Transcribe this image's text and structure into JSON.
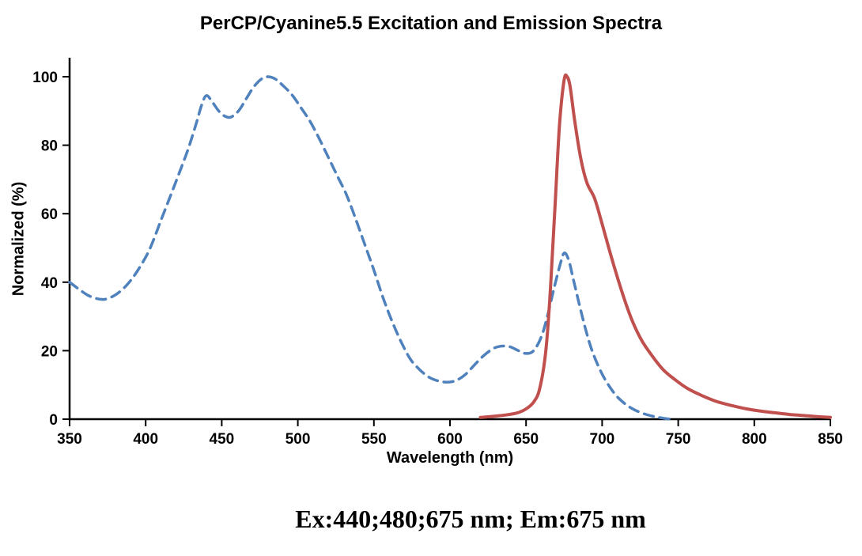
{
  "caption": "Ex:440;480;675 nm; Em:675 nm",
  "chart_data": {
    "type": "line",
    "title": "PerCP/Cyanine5.5 Excitation and Emission Spectra",
    "xlabel": "Wavelength (nm)",
    "ylabel": "Normalized (%)",
    "xlim": [
      350,
      850
    ],
    "ylim": [
      0,
      100
    ],
    "xticks": [
      350,
      400,
      450,
      500,
      550,
      600,
      650,
      700,
      750,
      800,
      850
    ],
    "yticks": [
      0,
      20,
      40,
      60,
      80,
      100
    ],
    "grid": false,
    "legend": "none",
    "series": [
      {
        "name": "Excitation",
        "style": "dashed",
        "color": "#4f81bd",
        "points": [
          [
            350,
            40
          ],
          [
            356,
            38
          ],
          [
            362,
            36.2
          ],
          [
            368,
            35.2
          ],
          [
            373,
            35
          ],
          [
            379,
            36
          ],
          [
            385,
            38
          ],
          [
            391,
            41
          ],
          [
            397,
            45
          ],
          [
            403,
            50
          ],
          [
            410,
            58
          ],
          [
            417,
            66
          ],
          [
            423,
            73
          ],
          [
            428,
            79
          ],
          [
            433,
            86
          ],
          [
            437,
            92
          ],
          [
            440,
            94.5
          ],
          [
            444,
            92.5
          ],
          [
            448,
            90
          ],
          [
            452,
            88.5
          ],
          [
            456,
            88.2
          ],
          [
            461,
            90
          ],
          [
            466,
            93.5
          ],
          [
            471,
            97
          ],
          [
            476,
            99.3
          ],
          [
            480,
            100
          ],
          [
            485,
            99.4
          ],
          [
            490,
            97.5
          ],
          [
            496,
            94.8
          ],
          [
            502,
            91
          ],
          [
            508,
            87
          ],
          [
            514,
            82
          ],
          [
            520,
            76.5
          ],
          [
            526,
            71
          ],
          [
            532,
            65.5
          ],
          [
            538,
            58.5
          ],
          [
            544,
            51
          ],
          [
            550,
            43.5
          ],
          [
            556,
            35.5
          ],
          [
            562,
            28.5
          ],
          [
            568,
            22.5
          ],
          [
            574,
            17.5
          ],
          [
            580,
            14.5
          ],
          [
            586,
            12.3
          ],
          [
            592,
            11.2
          ],
          [
            598,
            10.8
          ],
          [
            604,
            11.3
          ],
          [
            610,
            13
          ],
          [
            616,
            15.8
          ],
          [
            622,
            18.5
          ],
          [
            628,
            20.5
          ],
          [
            633,
            21.3
          ],
          [
            639,
            21.2
          ],
          [
            645,
            20
          ],
          [
            650,
            19.2
          ],
          [
            655,
            20
          ],
          [
            660,
            24
          ],
          [
            664,
            30
          ],
          [
            668,
            37.5
          ],
          [
            672,
            44.5
          ],
          [
            675,
            48.5
          ],
          [
            678,
            46.5
          ],
          [
            681,
            41
          ],
          [
            685,
            33.5
          ],
          [
            689,
            26.5
          ],
          [
            693,
            20.5
          ],
          [
            698,
            15
          ],
          [
            703,
            10.8
          ],
          [
            709,
            7
          ],
          [
            715,
            4.5
          ],
          [
            721,
            2.8
          ],
          [
            728,
            1.5
          ],
          [
            735,
            0.7
          ],
          [
            740,
            0.3
          ],
          [
            745,
            0
          ]
        ]
      },
      {
        "name": "Emission",
        "style": "solid",
        "color": "#c0504d",
        "points": [
          [
            620,
            0.5
          ],
          [
            628,
            0.8
          ],
          [
            636,
            1.2
          ],
          [
            644,
            1.8
          ],
          [
            650,
            3
          ],
          [
            655,
            5
          ],
          [
            659,
            9
          ],
          [
            663,
            20
          ],
          [
            666,
            38
          ],
          [
            669,
            62
          ],
          [
            672,
            86
          ],
          [
            675,
            99
          ],
          [
            677,
            100
          ],
          [
            679,
            97
          ],
          [
            682,
            87
          ],
          [
            686,
            76
          ],
          [
            690,
            69
          ],
          [
            695,
            64.5
          ],
          [
            700,
            57
          ],
          [
            705,
            49
          ],
          [
            710,
            41.5
          ],
          [
            715,
            34.5
          ],
          [
            720,
            28.5
          ],
          [
            726,
            23
          ],
          [
            732,
            19
          ],
          [
            740,
            14.5
          ],
          [
            748,
            11.5
          ],
          [
            756,
            9
          ],
          [
            765,
            7
          ],
          [
            775,
            5.2
          ],
          [
            785,
            4
          ],
          [
            795,
            3
          ],
          [
            805,
            2.3
          ],
          [
            815,
            1.8
          ],
          [
            825,
            1.3
          ],
          [
            835,
            1
          ],
          [
            843,
            0.7
          ],
          [
            850,
            0.5
          ]
        ]
      }
    ]
  }
}
